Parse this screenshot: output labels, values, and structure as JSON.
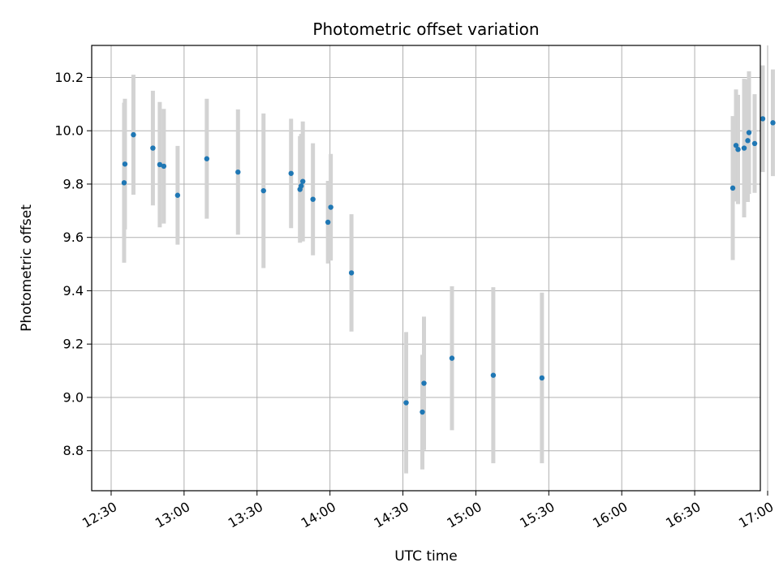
{
  "chart_data": {
    "type": "scatter",
    "title": "Photometric offset variation",
    "xlabel": "UTC time",
    "ylabel": "Photometric offset",
    "xlim": [
      "12:22",
      "16:57"
    ],
    "ylim": [
      8.65,
      10.32
    ],
    "grid": true,
    "x_ticks": [
      "12:30",
      "13:00",
      "13:30",
      "14:00",
      "14:30",
      "15:00",
      "15:30",
      "16:00",
      "16:30",
      "17:00"
    ],
    "y_ticks": [
      "8.8",
      "9.0",
      "9.2",
      "9.4",
      "9.6",
      "9.8",
      "10.0",
      "10.2"
    ],
    "colors": {
      "points": "#1f77b4",
      "errorbars": "#d3d3d3",
      "grid": "#b0b0b0"
    },
    "points": [
      {
        "x": "12:35:20",
        "y": 9.805,
        "yerr": 0.3
      },
      {
        "x": "12:35:40",
        "y": 9.875,
        "yerr": 0.245
      },
      {
        "x": "12:39:10",
        "y": 9.985,
        "yerr": 0.225
      },
      {
        "x": "12:47:10",
        "y": 9.935,
        "yerr": 0.215
      },
      {
        "x": "12:50:00",
        "y": 9.873,
        "yerr": 0.235
      },
      {
        "x": "12:51:40",
        "y": 9.867,
        "yerr": 0.215
      },
      {
        "x": "12:57:20",
        "y": 9.758,
        "yerr": 0.185
      },
      {
        "x": "13:09:20",
        "y": 9.895,
        "yerr": 0.225
      },
      {
        "x": "13:22:10",
        "y": 9.845,
        "yerr": 0.235
      },
      {
        "x": "13:32:40",
        "y": 9.775,
        "yerr": 0.29
      },
      {
        "x": "13:44:00",
        "y": 9.84,
        "yerr": 0.205
      },
      {
        "x": "13:47:40",
        "y": 9.78,
        "yerr": 0.2
      },
      {
        "x": "13:48:10",
        "y": 9.793,
        "yerr": 0.195
      },
      {
        "x": "13:48:50",
        "y": 9.81,
        "yerr": 0.225
      },
      {
        "x": "13:53:00",
        "y": 9.743,
        "yerr": 0.21
      },
      {
        "x": "13:59:10",
        "y": 9.657,
        "yerr": 0.155
      },
      {
        "x": "14:00:20",
        "y": 9.713,
        "yerr": 0.2
      },
      {
        "x": "14:08:50",
        "y": 9.467,
        "yerr": 0.22
      },
      {
        "x": "14:31:20",
        "y": 8.98,
        "yerr": 0.265
      },
      {
        "x": "14:38:00",
        "y": 8.945,
        "yerr": 0.215
      },
      {
        "x": "14:38:40",
        "y": 9.053,
        "yerr": 0.25
      },
      {
        "x": "14:50:10",
        "y": 9.147,
        "yerr": 0.27
      },
      {
        "x": "15:07:10",
        "y": 9.083,
        "yerr": 0.33
      },
      {
        "x": "15:27:10",
        "y": 9.073,
        "yerr": 0.32
      },
      {
        "x": "16:45:40",
        "y": 9.785,
        "yerr": 0.27
      },
      {
        "x": "16:47:00",
        "y": 9.945,
        "yerr": 0.21
      },
      {
        "x": "16:47:50",
        "y": 9.93,
        "yerr": 0.205
      },
      {
        "x": "16:50:20",
        "y": 9.935,
        "yerr": 0.26
      },
      {
        "x": "16:51:50",
        "y": 9.963,
        "yerr": 0.23
      },
      {
        "x": "16:52:20",
        "y": 9.993,
        "yerr": 0.23
      },
      {
        "x": "16:54:40",
        "y": 9.952,
        "yerr": 0.185
      },
      {
        "x": "16:58:00",
        "y": 10.045,
        "yerr": 0.2
      },
      {
        "x": "17:02:10",
        "y": 10.03,
        "yerr": 0.2
      }
    ]
  }
}
